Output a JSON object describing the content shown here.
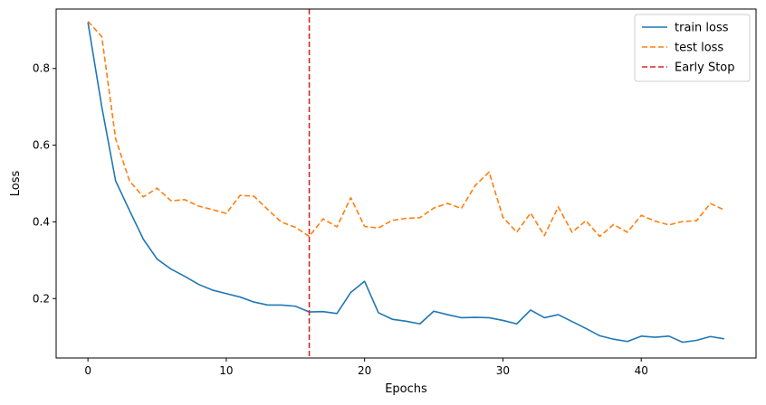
{
  "chart_data": {
    "type": "line",
    "title": "",
    "xlabel": "Epochs",
    "ylabel": "Loss",
    "xlim": [
      -2.3,
      48.3
    ],
    "ylim": [
      0.045,
      0.955
    ],
    "xticks": [
      0,
      10,
      20,
      30,
      40
    ],
    "yticks": [
      0.2,
      0.4,
      0.6,
      0.8
    ],
    "grid": false,
    "legend_position": "top-right",
    "x": [
      0,
      1,
      2,
      3,
      4,
      5,
      6,
      7,
      8,
      9,
      10,
      11,
      12,
      13,
      14,
      15,
      16,
      17,
      18,
      19,
      20,
      21,
      22,
      23,
      24,
      25,
      26,
      27,
      28,
      29,
      30,
      31,
      32,
      33,
      34,
      35,
      36,
      37,
      38,
      39,
      40,
      41,
      42,
      43,
      44,
      45,
      46
    ],
    "series": [
      {
        "name": "train loss",
        "color": "#1f77b4",
        "style": "solid",
        "values": [
          0.92,
          0.7,
          0.507,
          0.43,
          0.355,
          0.303,
          0.277,
          0.258,
          0.237,
          0.222,
          0.213,
          0.204,
          0.191,
          0.183,
          0.183,
          0.18,
          0.165,
          0.166,
          0.161,
          0.216,
          0.245,
          0.163,
          0.146,
          0.141,
          0.134,
          0.167,
          0.158,
          0.15,
          0.151,
          0.15,
          0.143,
          0.134,
          0.17,
          0.15,
          0.158,
          0.14,
          0.122,
          0.103,
          0.094,
          0.088,
          0.102,
          0.099,
          0.102,
          0.086,
          0.091,
          0.101,
          0.095
        ]
      },
      {
        "name": "test loss",
        "color": "#ff7f0e",
        "style": "dashed",
        "values": [
          0.923,
          0.883,
          0.617,
          0.507,
          0.465,
          0.488,
          0.455,
          0.458,
          0.441,
          0.432,
          0.422,
          0.469,
          0.467,
          0.432,
          0.399,
          0.386,
          0.362,
          0.408,
          0.387,
          0.463,
          0.388,
          0.384,
          0.404,
          0.409,
          0.411,
          0.436,
          0.448,
          0.435,
          0.495,
          0.53,
          0.412,
          0.373,
          0.423,
          0.364,
          0.439,
          0.373,
          0.403,
          0.362,
          0.393,
          0.373,
          0.417,
          0.402,
          0.392,
          0.401,
          0.403,
          0.448,
          0.431
        ]
      }
    ],
    "vlines": [
      {
        "name": "Early Stop",
        "x": 16,
        "color": "#d62728",
        "style": "dashed"
      }
    ]
  }
}
